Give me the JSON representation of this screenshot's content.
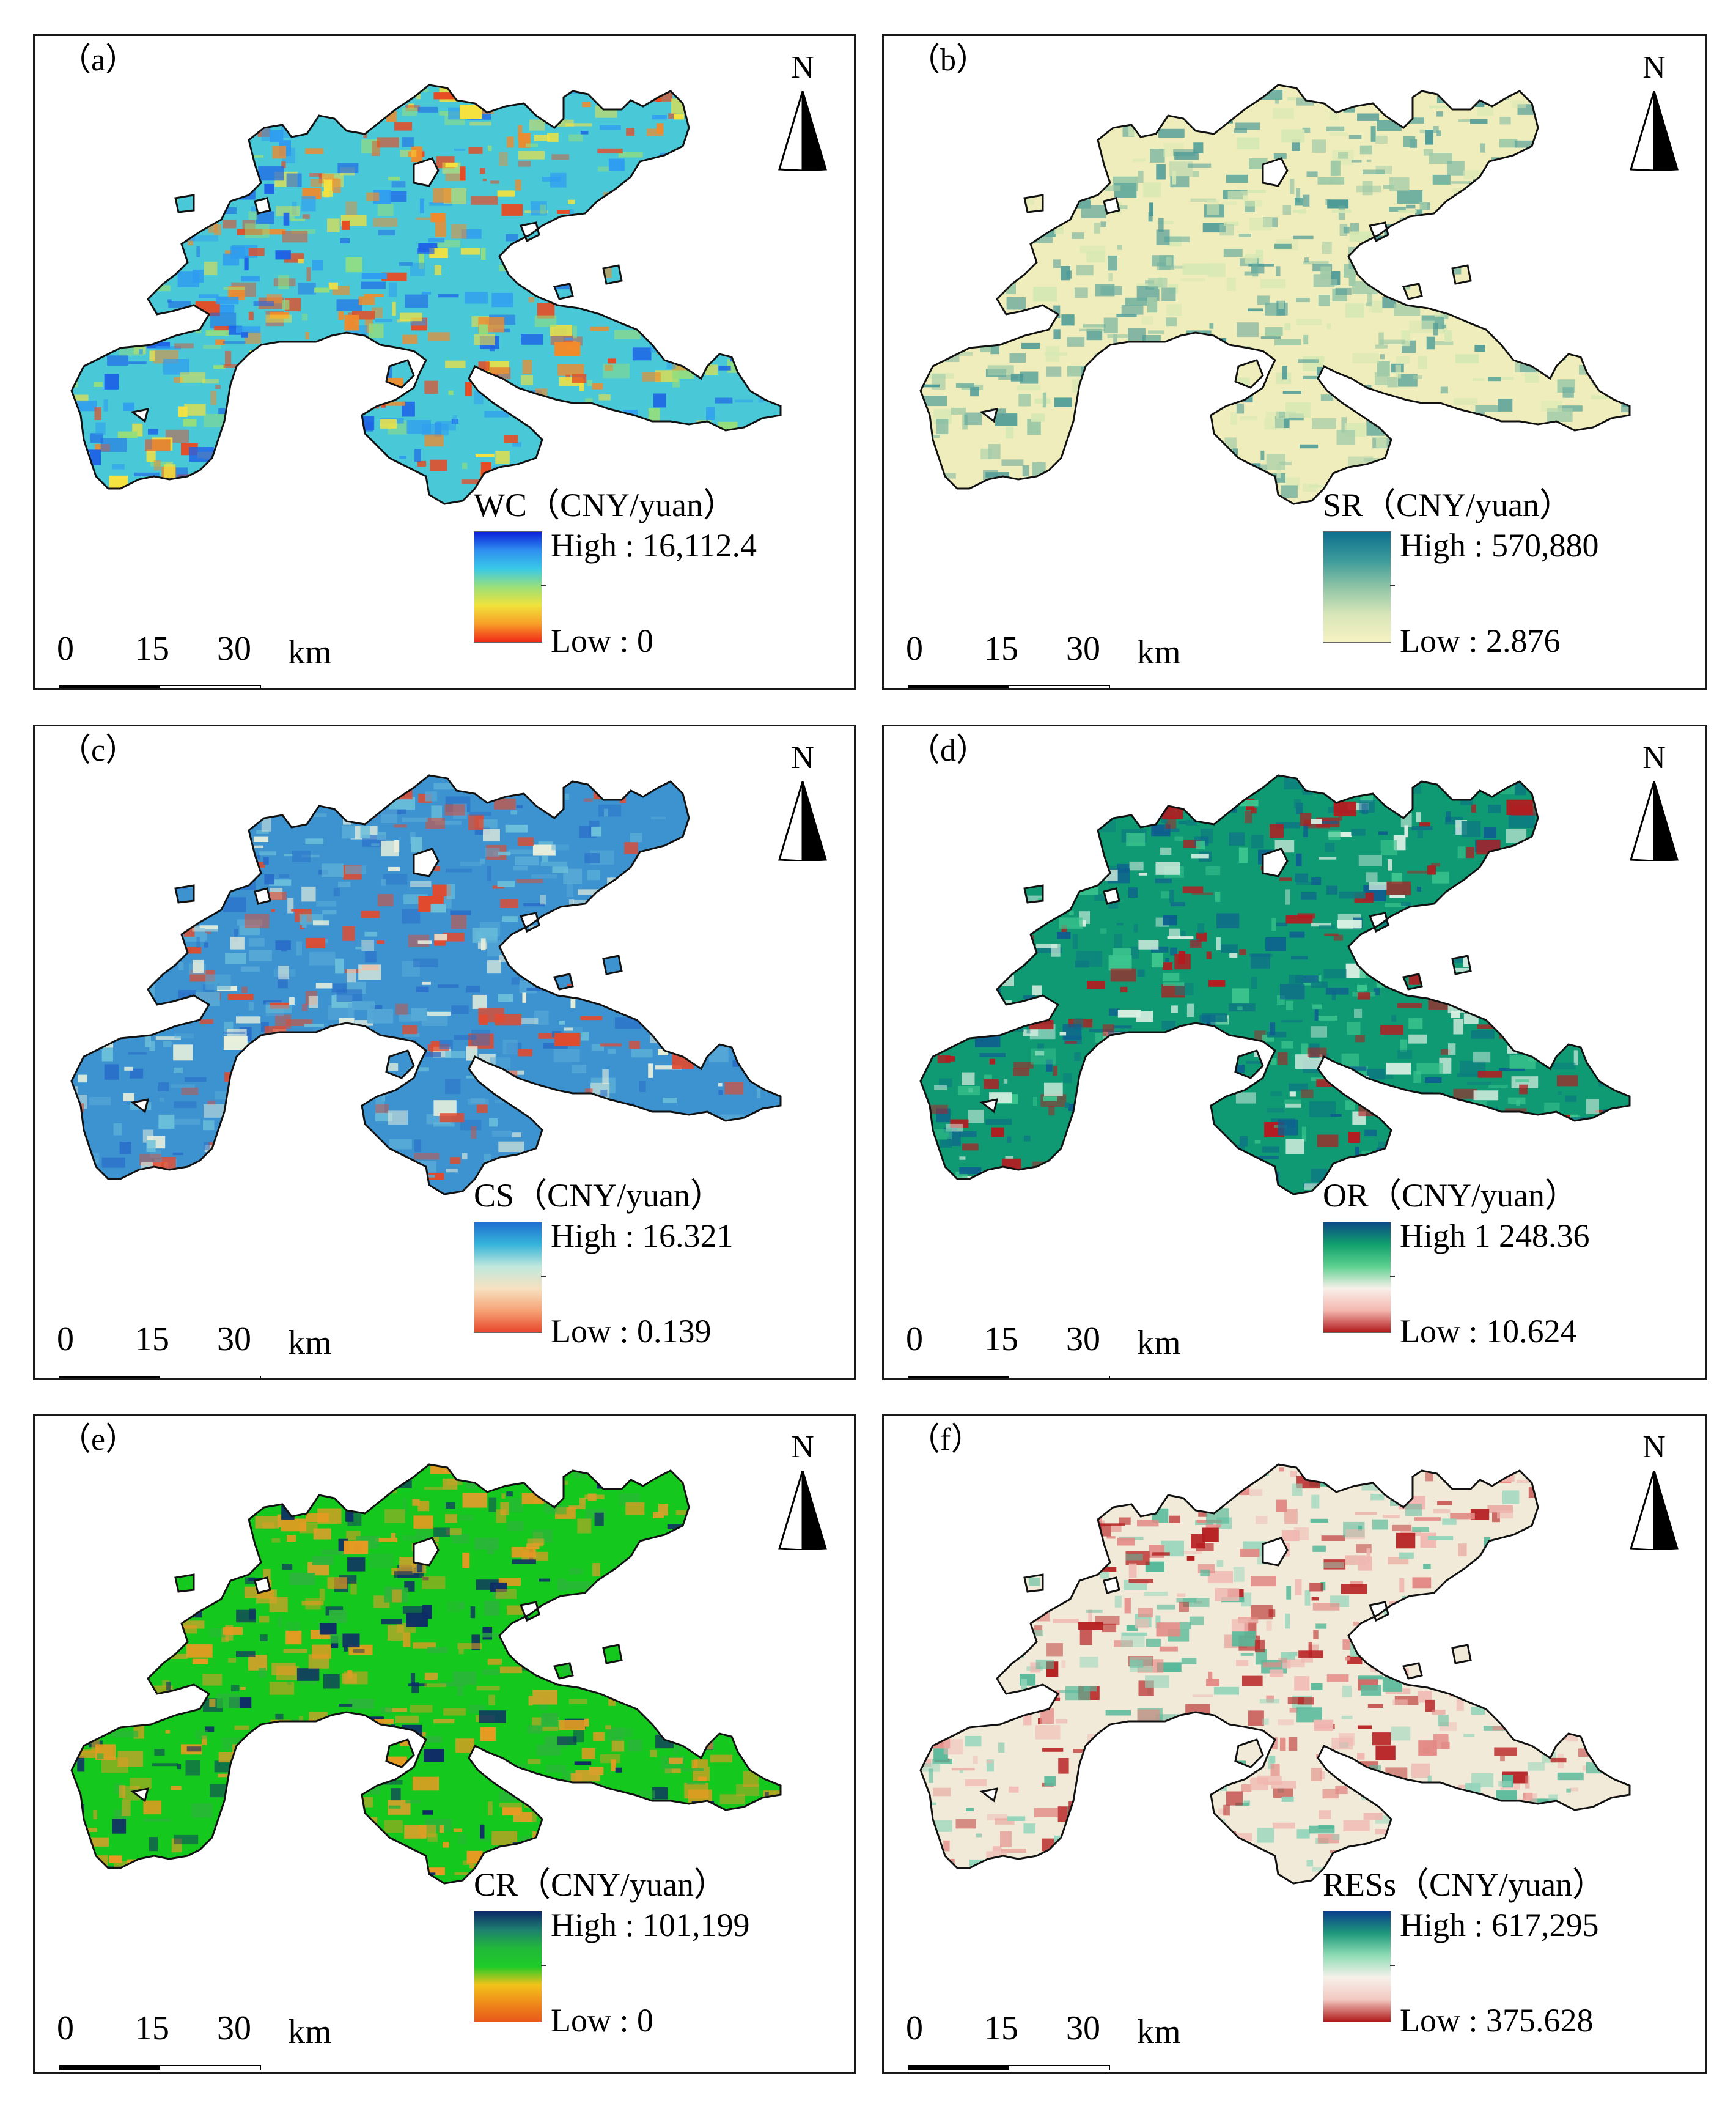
{
  "panels": [
    {
      "id": "a",
      "label": "（a）",
      "legend_title": "WC（CNY/yuan）",
      "high": "High : 16,112.4",
      "low": "Low : 0",
      "ramp": [
        "#0a1fd9",
        "#2f8ff0",
        "#39c9e8",
        "#9be07a",
        "#f0e23a",
        "#f8a028",
        "#f02818"
      ],
      "fill": {
        "base": "#49c8d8",
        "patches": [
          "#1e63e6",
          "#f5e23e",
          "#f28a2a",
          "#96de7b",
          "#2f9cf0",
          "#e84a22"
        ]
      }
    },
    {
      "id": "b",
      "label": "（b）",
      "legend_title": "SR（CNY/yuan）",
      "high": "High : 570,880",
      "low": "Low : 2.876",
      "ramp": [
        "#0d6f8f",
        "#3a9a9a",
        "#8fc4a6",
        "#d8e6b8",
        "#f6f2c2"
      ],
      "fill": {
        "base": "#efedbb",
        "patches": [
          "#9fcaa8",
          "#6aad9e",
          "#d6e8b4",
          "#4c9a97"
        ]
      }
    },
    {
      "id": "c",
      "label": "（c）",
      "legend_title": "CS（CNY/yuan）",
      "high": "High : 16.321",
      "low": "Low : 0.139",
      "ramp": [
        "#1f6fd0",
        "#35b4da",
        "#bfe7dc",
        "#f7e2c2",
        "#f6a376",
        "#e8462a"
      ],
      "fill": {
        "base": "#3c93d0",
        "patches": [
          "#2a6fc9",
          "#6cc0da",
          "#e24a2e",
          "#e9f0dc",
          "#56a9d6"
        ]
      }
    },
    {
      "id": "d",
      "label": "（d）",
      "legend_title": "OR（CNY/yuan）",
      "high": "High 1 248.36",
      "low": "Low : 10.624",
      "ramp": [
        "#0c4a86",
        "#11a06d",
        "#5cd08f",
        "#f8f0ea",
        "#f4b8b0",
        "#b2181b"
      ],
      "fill": {
        "base": "#109a74",
        "patches": [
          "#0e5f8f",
          "#3cc58e",
          "#b51a1f",
          "#d8efe2",
          "#0c7b80"
        ]
      }
    },
    {
      "id": "e",
      "label": "（e）",
      "legend_title": "CR（CNY/yuan）",
      "high": "High : 101,199",
      "low": "Low : 0",
      "ramp": [
        "#0b2a68",
        "#1e7f6f",
        "#21b83a",
        "#1ecb28",
        "#f2c31a",
        "#ef8a1a",
        "#e8581a"
      ],
      "fill": {
        "base": "#15c81e",
        "patches": [
          "#e89a22",
          "#d6a02a",
          "#0f2c66",
          "#2bb53a"
        ]
      }
    },
    {
      "id": "f",
      "label": "（f）",
      "legend_title": "RESs（CNY/yuan）",
      "high": "High : 617,295",
      "low": "Low : 375.628",
      "ramp": [
        "#0a3f8c",
        "#1f9a7c",
        "#8fdcb5",
        "#f6f1ea",
        "#f2c8c0",
        "#b01a1a"
      ],
      "fill": {
        "base": "#f1ead8",
        "patches": [
          "#57b99a",
          "#f0b8b2",
          "#b51c1e",
          "#93d5bb",
          "#e38a86"
        ]
      }
    }
  ],
  "north_label": "N",
  "scale": {
    "t0": "0",
    "t1": "15",
    "t2": "30",
    "unit": "km"
  }
}
